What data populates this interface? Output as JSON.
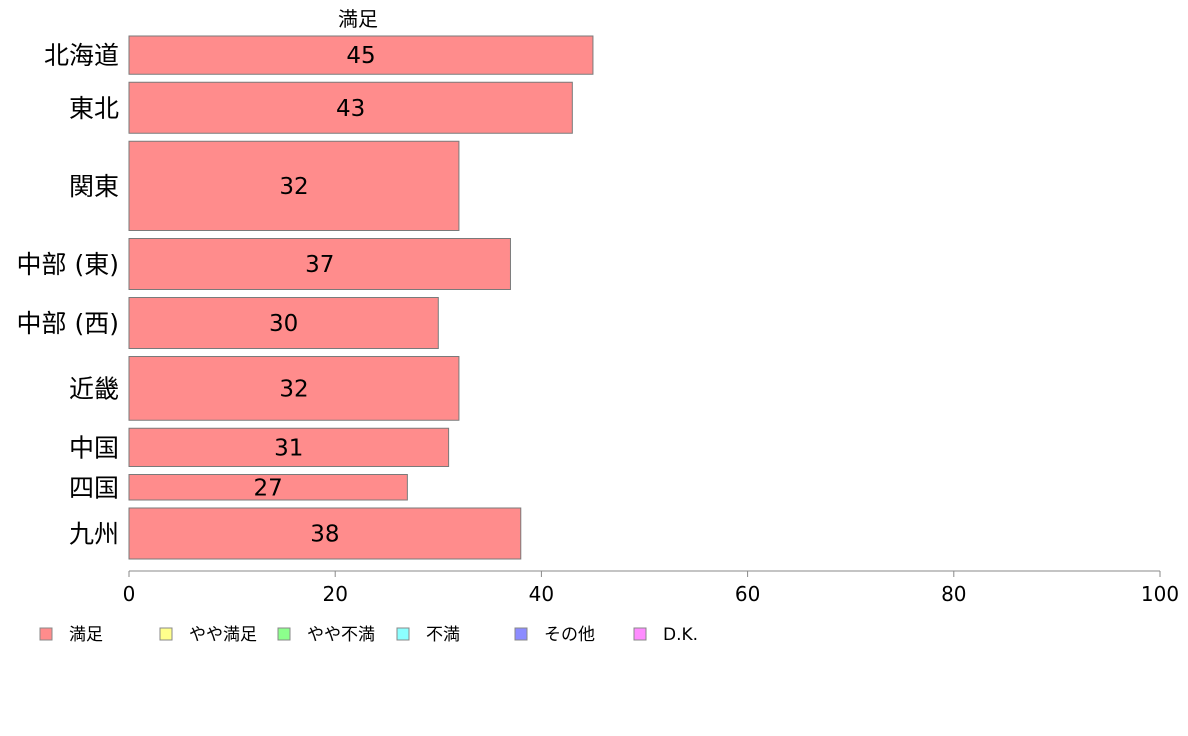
{
  "chart_data": {
    "type": "bar",
    "orientation": "horizontal",
    "title": "満足",
    "categories": [
      "北海道",
      "東北",
      "関東",
      "中部 (東)",
      "中部 (西)",
      "近畿",
      "中国",
      "四国",
      "九州"
    ],
    "series": [
      {
        "name": "満足",
        "values": [
          45,
          43,
          32,
          37,
          30,
          32,
          31,
          27,
          38
        ],
        "color": "#ff8c8c"
      }
    ],
    "bar_weights": [
      3,
      4,
      7,
      4,
      4,
      5,
      3,
      2,
      4
    ],
    "xlim": [
      0,
      100
    ],
    "xticks": [
      0,
      20,
      40,
      60,
      80,
      100
    ],
    "grid": false,
    "legend_position": "bottom",
    "legend": [
      {
        "label": "満足",
        "color": "#ff8c8c"
      },
      {
        "label": "やや満足",
        "color": "#ffff8c"
      },
      {
        "label": "やや不満",
        "color": "#8cff8c"
      },
      {
        "label": "不満",
        "color": "#8cffff"
      },
      {
        "label": "その他",
        "color": "#8c8cff"
      },
      {
        "label": "D.K.",
        "color": "#ff8cff"
      }
    ]
  }
}
